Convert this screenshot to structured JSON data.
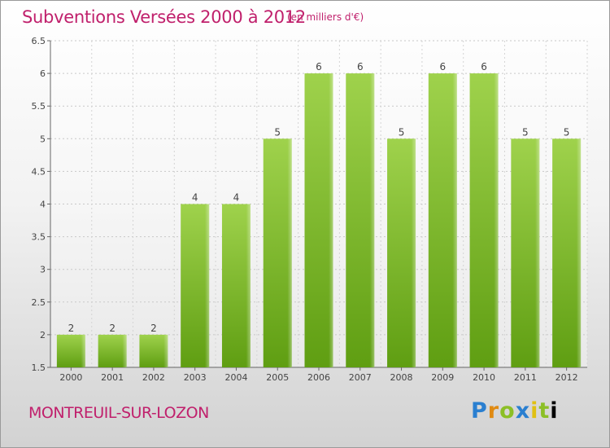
{
  "header": {
    "title": "Subventions Versées 2000 à 2012",
    "unit": "(en milliers d'€)"
  },
  "footer": {
    "commune": "MONTREUIL-SUR-LOZON",
    "logo_letters": [
      "P",
      "r",
      "o",
      "x",
      "i",
      "t",
      "i"
    ]
  },
  "chart_data": {
    "type": "bar",
    "title": "Subventions Versées 2000 à 2012",
    "subtitle": "(en milliers d'€)",
    "categories": [
      "2000",
      "2001",
      "2002",
      "2003",
      "2004",
      "2005",
      "2006",
      "2007",
      "2008",
      "2009",
      "2010",
      "2011",
      "2012"
    ],
    "values": [
      2,
      2,
      2,
      4,
      4,
      5,
      6,
      6,
      5,
      6,
      6,
      5,
      5
    ],
    "data_labels": [
      "2",
      "2",
      "2",
      "4",
      "4",
      "5",
      "6",
      "6",
      "5",
      "6",
      "6",
      "5",
      "5"
    ],
    "ylim": [
      1.5,
      6.5
    ],
    "yticks": [
      "1.5",
      "2",
      "2.5",
      "3",
      "3.5",
      "4",
      "4.5",
      "5",
      "5.5",
      "6",
      "6.5"
    ],
    "grid": true,
    "bar_color": "#8ec63f"
  }
}
